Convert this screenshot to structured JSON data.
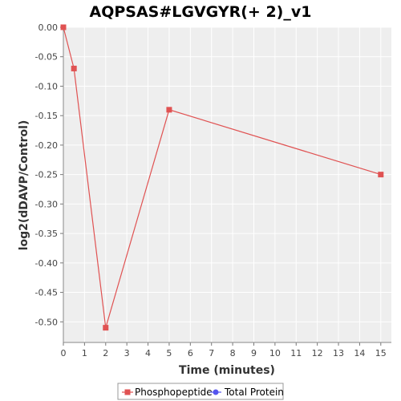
{
  "chart_data": {
    "type": "line",
    "title": "AQPSAS#LGVGYR(+ 2)_v1",
    "xlabel": "Time (minutes)",
    "ylabel": "log2(dDAVP/Control)",
    "xlim": [
      0,
      15.5
    ],
    "ylim": [
      -0.535,
      0
    ],
    "x_ticks": [
      0,
      1,
      2,
      3,
      4,
      5,
      6,
      7,
      8,
      9,
      10,
      11,
      12,
      13,
      14,
      15
    ],
    "y_ticks": [
      0.0,
      -0.05,
      -0.1,
      -0.15,
      -0.2,
      -0.25,
      -0.3,
      -0.35,
      -0.4,
      -0.45,
      -0.5
    ],
    "y_tick_labels": [
      "0.00",
      "-0.05",
      "-0.10",
      "-0.15",
      "-0.20",
      "-0.25",
      "-0.30",
      "-0.35",
      "-0.40",
      "-0.45",
      "-0.50"
    ],
    "grid": true,
    "legend_position": "bottom-center",
    "series": [
      {
        "name": "Phosphopeptide",
        "color": "#e05252",
        "marker": "square",
        "x": [
          0,
          0.5,
          2,
          5,
          15
        ],
        "y": [
          0.0,
          -0.07,
          -0.51,
          -0.14,
          -0.25
        ]
      },
      {
        "name": "Total Protein",
        "color": "#5555ee",
        "marker": "circle",
        "x": [],
        "y": []
      }
    ]
  }
}
